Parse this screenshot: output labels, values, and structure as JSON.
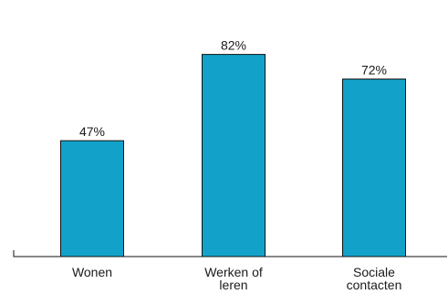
{
  "chart_data": {
    "type": "bar",
    "title": "",
    "xlabel": "",
    "ylabel": "",
    "ylim": [
      0,
      100
    ],
    "grid": false,
    "legend": "none",
    "categories": [
      [
        "Wonen"
      ],
      [
        "Werken of",
        "leren"
      ],
      [
        "Sociale",
        "contacten"
      ]
    ],
    "values": [
      47,
      82,
      72
    ],
    "data_labels": [
      "47%",
      "82%",
      "72%"
    ],
    "colors": {
      "bar": "#12a2c9",
      "bar_outline": "#111111",
      "axis": "#111111",
      "text": "#1a1a1a"
    }
  }
}
